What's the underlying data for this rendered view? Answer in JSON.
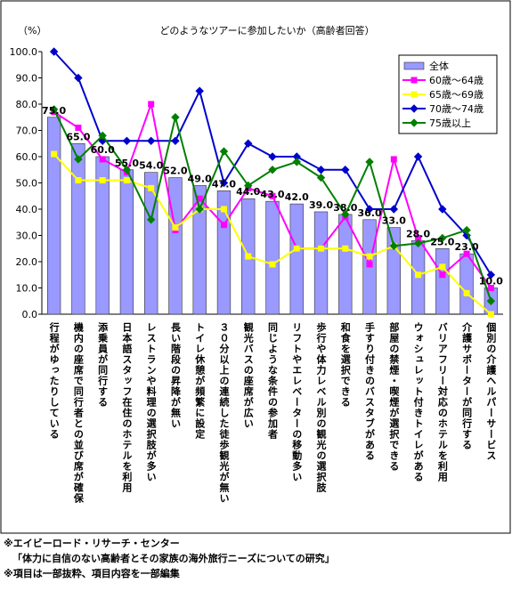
{
  "chart_data": {
    "type": "bar_line",
    "title": "どのようなツアーに参加したいか（高齢者回答）",
    "y_label": "（%）",
    "categories": [
      "行程がゆったりしている",
      "機内の座席で同行者との並び席が確保",
      "添乗員が同行する",
      "日本語スタッフ在住のホテルを利用",
      "レストランや料理の選択肢が多い",
      "長い階段の昇降が無い",
      "トイレ休憩が頻繁に設定",
      "３０分以上の連続した徒歩観光が無い",
      "観光バスの座席が広い",
      "同じような条件の参加者",
      "リフトやエレベーターの移動多い",
      "歩行や体力レベル別の観光の選択肢",
      "和食を選択できる",
      "手すり付きのバスタブがある",
      "部屋の禁煙・喫煙が選択できる",
      "ウォシュレット付きトイレがある",
      "バリアフリー対応のホテルを利用",
      "介護サポーターが同行する",
      "個別の介護ヘルパーサービス"
    ],
    "series": [
      {
        "name": "全体",
        "kind": "bar",
        "color": "#9999ff",
        "values": [
          75,
          65,
          60,
          55,
          54,
          52,
          49,
          47,
          44,
          43,
          42,
          39,
          38,
          36,
          33,
          28,
          25,
          23,
          10
        ],
        "value_labels": [
          "75.0",
          "65.0",
          "60.0",
          "55.0",
          "54.0",
          "52.0",
          "49.0",
          "47.0",
          "44.0",
          "43.0",
          "42.0",
          "39.0",
          "38.0",
          "36.0",
          "33.0",
          "28.0",
          "25.0",
          "23.0",
          "10.0"
        ]
      },
      {
        "name": "60歳～64歳",
        "kind": "line",
        "marker": "square",
        "color": "#ff00ff",
        "values": [
          77,
          71,
          59,
          54,
          80,
          32,
          44,
          34,
          48,
          45,
          25,
          25,
          37,
          19,
          59,
          29,
          15,
          23,
          10
        ]
      },
      {
        "name": "65歳～69歳",
        "kind": "line",
        "marker": "square",
        "color": "#ffff00",
        "values": [
          61,
          51,
          51,
          51,
          48,
          33,
          40,
          40,
          22,
          19,
          25,
          25,
          25,
          22,
          26,
          15,
          18,
          8,
          0
        ]
      },
      {
        "name": "70歳～74歳",
        "kind": "line",
        "marker": "diamond",
        "color": "#0000cc",
        "values": [
          100,
          90,
          66,
          66,
          66,
          66,
          85,
          50,
          65,
          60,
          60,
          55,
          55,
          40,
          40,
          60,
          40,
          30,
          15
        ]
      },
      {
        "name": "75歳以上",
        "kind": "line",
        "marker": "diamond",
        "color": "#008000",
        "values": [
          78,
          59,
          68,
          55,
          36,
          75,
          40,
          62,
          49,
          55,
          58,
          52,
          38,
          58,
          26,
          27,
          29,
          32,
          5
        ]
      }
    ],
    "ylim": [
      0,
      100
    ],
    "yticks": [
      {
        "value": 0,
        "label": "0.0"
      },
      {
        "value": 10,
        "label": "10.0"
      },
      {
        "value": 20,
        "label": "20.0"
      },
      {
        "value": 30,
        "label": "30.0"
      },
      {
        "value": 40,
        "label": "40.0"
      },
      {
        "value": 50,
        "label": "50.0"
      },
      {
        "value": 60,
        "label": "60.0"
      },
      {
        "value": 70,
        "label": "70.0"
      },
      {
        "value": 80,
        "label": "80.0"
      },
      {
        "value": 90,
        "label": "90.0"
      },
      {
        "value": 100,
        "label": "100.0"
      }
    ],
    "legend": "top-right",
    "notes": [
      "※エイビーロード・リサーチ・センター",
      "「体力に自信のない高齢者とその家族の海外旅行ニーズについての研究」",
      "※項目は一部抜粋、項目内容を一部編集"
    ]
  }
}
